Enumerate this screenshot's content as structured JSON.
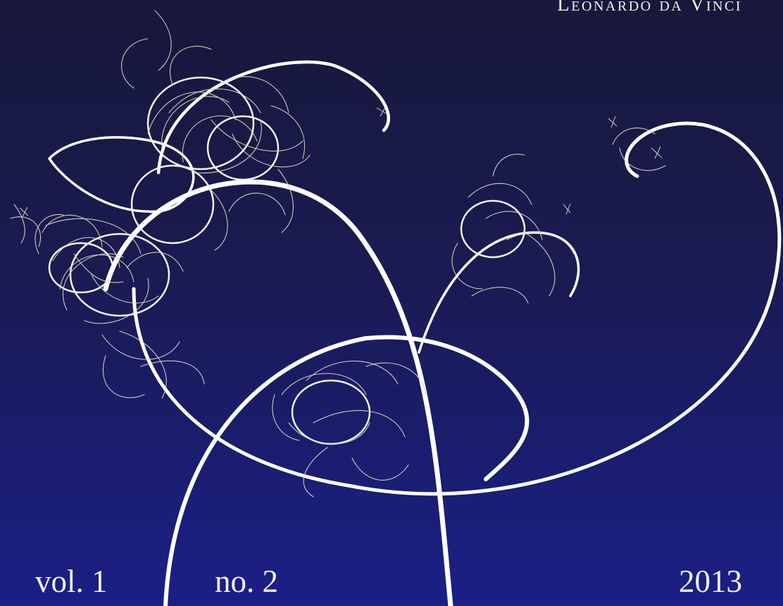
{
  "cover": {
    "header_name": "Leonardo da Vinci",
    "volume": "vol. 1",
    "issue": "no. 2",
    "year": "2013"
  },
  "colors": {
    "background_top": "#17183a",
    "background_bottom": "#1b1f86",
    "major_tracks": "#ffffff",
    "minor_tracks": "#d9d4c3"
  },
  "artwork": {
    "subject": "particle-track-spiral-artwork"
  }
}
